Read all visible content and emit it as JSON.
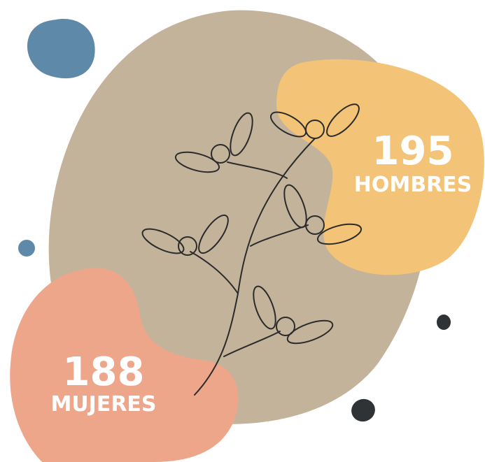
{
  "stats": [
    {
      "value": 195,
      "label": "HOMBRES"
    },
    {
      "value": 188,
      "label": "MUJERES"
    }
  ]
}
